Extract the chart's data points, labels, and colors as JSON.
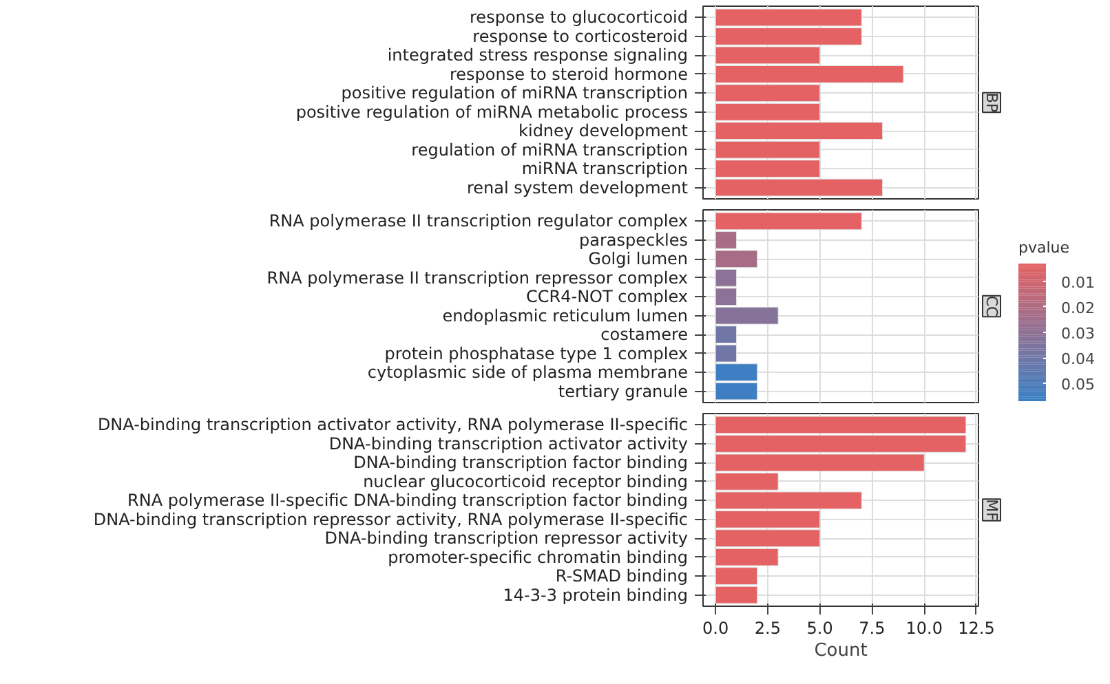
{
  "chart_data": [
    {
      "type": "bar",
      "orientation": "horizontal",
      "title": "BP",
      "grid": true,
      "tick_labels": "y",
      "xlim": [
        -0.6,
        12.6
      ],
      "xticks": [
        0,
        2.5,
        5,
        7.5,
        10,
        12.5
      ],
      "categories": [
        "response to glucocorticoid",
        "response to corticosteroid",
        "integrated stress response signaling",
        "response to steroid hormone",
        "positive regulation of miRNA transcription",
        "positive regulation of miRNA metabolic process",
        "kidney development",
        "regulation of miRNA transcription",
        "miRNA transcription",
        "renal system development"
      ],
      "values": [
        7,
        7,
        5,
        9,
        5,
        5,
        8,
        5,
        5,
        8
      ],
      "color": "#e46264"
    },
    {
      "type": "bar",
      "orientation": "horizontal",
      "title": "CC",
      "grid": true,
      "tick_labels": "y",
      "xlim": [
        -0.6,
        12.6
      ],
      "xticks": [
        0,
        2.5,
        5,
        7.5,
        10,
        12.5
      ],
      "categories": [
        "RNA polymerase II transcription regulator complex",
        "paraspeckles",
        "Golgi lumen",
        "RNA polymerase II transcription repressor complex",
        "CCR4-NOT complex",
        "endoplasmic reticulum lumen",
        "costamere",
        "protein phosphatase type 1 complex",
        "cytoplasmic side of plasma membrane",
        "tertiary granule"
      ],
      "values": [
        7,
        1,
        2,
        1,
        1,
        3,
        1,
        1,
        2,
        2
      ],
      "cvalues": [
        0.003,
        0.022,
        0.022,
        0.031,
        0.031,
        0.033,
        0.04,
        0.04,
        0.056,
        0.056
      ],
      "clabel": "pvalue",
      "clim": [
        0.003,
        0.057
      ],
      "cticks": [
        0.01,
        0.02,
        0.03,
        0.04,
        0.05
      ]
    },
    {
      "type": "bar",
      "orientation": "horizontal",
      "title": "MF",
      "grid": true,
      "xlabel": "Count",
      "xlim": [
        -0.6,
        12.6
      ],
      "xticks": [
        {
          "value": 0,
          "label": "0.0"
        },
        {
          "value": 2.5,
          "label": "2.5"
        },
        {
          "value": 5,
          "label": "5.0"
        },
        {
          "value": 7.5,
          "label": "7.5"
        },
        {
          "value": 10,
          "label": "10.0"
        },
        {
          "value": 12.5,
          "label": "12.5"
        }
      ],
      "categories": [
        "DNA-binding transcription activator activity, RNA polymerase II-specific",
        "DNA-binding transcription activator activity",
        "DNA-binding transcription factor binding",
        "nuclear glucocorticoid receptor binding",
        "RNA polymerase II-specific DNA-binding transcription factor binding",
        "DNA-binding transcription repressor activity, RNA polymerase II-specific",
        "DNA-binding transcription repressor activity",
        "promoter-specific chromatin binding",
        "R-SMAD binding",
        "14-3-3 protein binding"
      ],
      "values": [
        12,
        12,
        10,
        3,
        7,
        5,
        5,
        3,
        2,
        2
      ],
      "color": "#e46264"
    }
  ]
}
